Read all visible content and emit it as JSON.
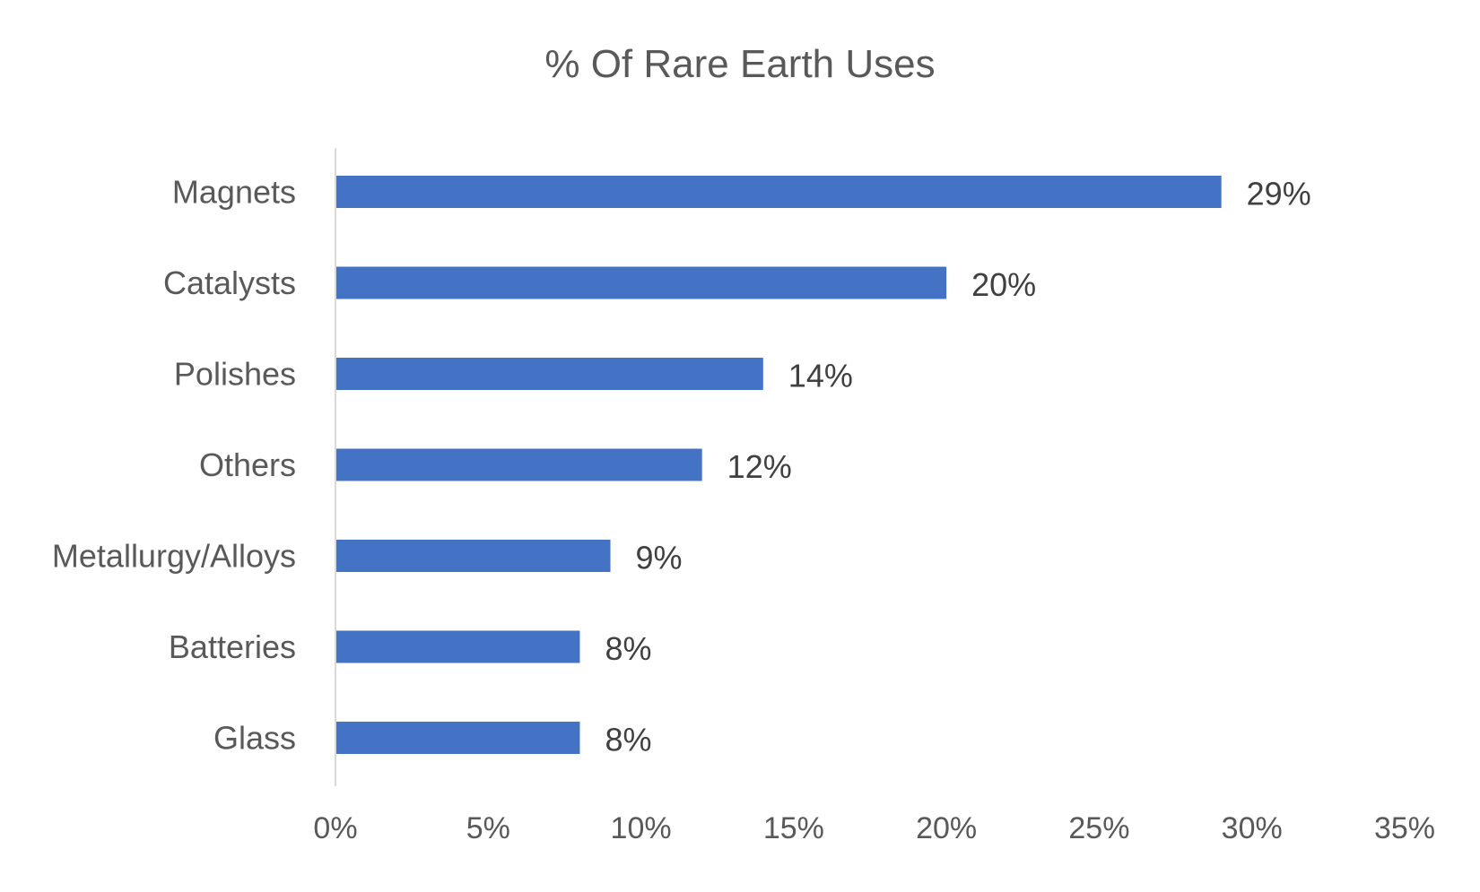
{
  "chart_data": {
    "type": "bar",
    "orientation": "horizontal",
    "title": "% Of Rare Earth Uses",
    "categories": [
      "Magnets",
      "Catalysts",
      "Polishes",
      "Others",
      "Metallurgy/Alloys",
      "Batteries",
      "Glass"
    ],
    "values": [
      29,
      20,
      14,
      12,
      9,
      8,
      8
    ],
    "data_labels": [
      "29%",
      "20%",
      "14%",
      "12%",
      "9%",
      "8%",
      "8%"
    ],
    "x_ticks": [
      "0%",
      "5%",
      "10%",
      "15%",
      "20%",
      "25%",
      "30%",
      "35%"
    ],
    "xlim": [
      0,
      35
    ],
    "xlabel": "",
    "ylabel": "",
    "grid": false,
    "legend": "none",
    "bar_color": "#4472C4",
    "axis_color": "#D9D9D9"
  }
}
